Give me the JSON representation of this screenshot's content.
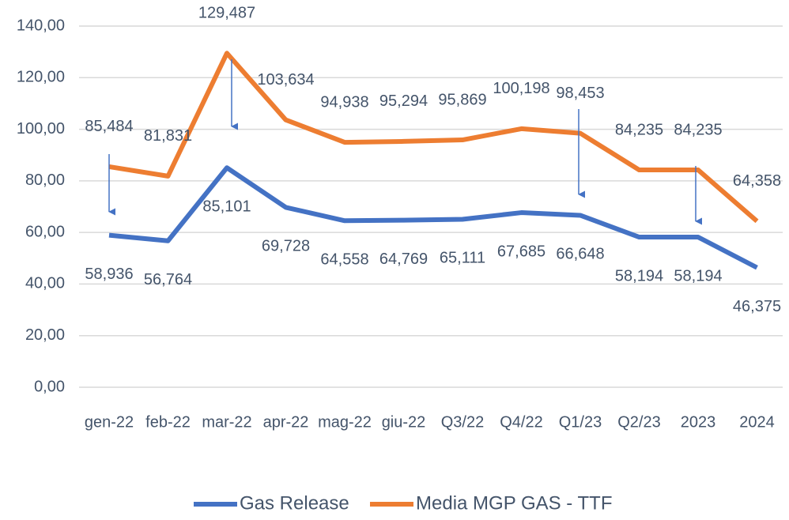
{
  "chart_data": {
    "type": "line",
    "categories": [
      "gen-22",
      "feb-22",
      "mar-22",
      "apr-22",
      "mag-22",
      "giu-22",
      "Q3/22",
      "Q4/22",
      "Q1/23",
      "Q2/23",
      "2023",
      "2024"
    ],
    "series": [
      {
        "name": "Gas Release",
        "color": "#4472c4",
        "values": [
          58.936,
          56.764,
          85.101,
          69.728,
          64.558,
          64.769,
          65.111,
          67.685,
          66.648,
          58.194,
          58.194,
          46.375
        ],
        "value_labels": [
          "58,936",
          "56,764",
          "85,101",
          "69,728",
          "64,558",
          "64,769",
          "65,111",
          "67,685",
          "66,648",
          "58,194",
          "58,194",
          "46,375"
        ]
      },
      {
        "name": "Media MGP GAS -  TTF",
        "color": "#ed7d31",
        "values": [
          85.484,
          81.831,
          129.487,
          103.634,
          94.938,
          95.294,
          95.869,
          100.198,
          98.453,
          84.235,
          84.235,
          64.358
        ],
        "value_labels": [
          "85,484",
          "81,831",
          "129,487",
          "103,634",
          "94,938",
          "95,294",
          "95,869",
          "100,198",
          "98,453",
          "84,235",
          "84,235",
          "64,358"
        ]
      }
    ],
    "ylim": [
      0,
      140
    ],
    "yticks": [
      {
        "value": 0,
        "label": "0,00"
      },
      {
        "value": 20,
        "label": "20,00"
      },
      {
        "value": 40,
        "label": "40,00"
      },
      {
        "value": 60,
        "label": "60,00"
      },
      {
        "value": 80,
        "label": "80,00"
      },
      {
        "value": 100,
        "label": "100,00"
      },
      {
        "value": 120,
        "label": "120,00"
      },
      {
        "value": 140,
        "label": "140,00"
      }
    ],
    "grid": true,
    "legend": "bottom"
  }
}
